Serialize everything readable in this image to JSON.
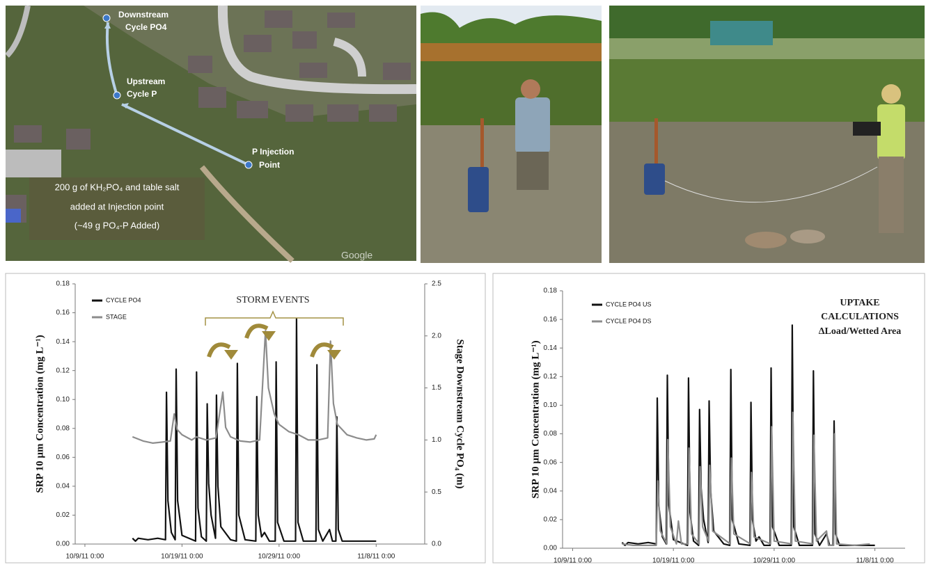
{
  "aerial_map": {
    "points": [
      [
        "Downstream",
        "Cycle PO4"
      ],
      [
        "Upstream",
        "Cycle P"
      ],
      [
        "P Injection",
        "Point"
      ]
    ],
    "note": [
      "200 g of KH₂PO₄ and table salt",
      "added at Injection point",
      "(~49 g PO₄-P Added)"
    ],
    "watermark": "Google"
  },
  "chart_data": [
    {
      "type": "line",
      "ylabel": "SRP 10 µm Concentration (mg L⁻¹)",
      "y2label": "Stage Downstream Cycle PO₄ (m)",
      "annotations": [
        "STORM EVENTS"
      ],
      "xlim": [
        40824,
        40860
      ],
      "xticks": [
        {
          "value": 40825,
          "label": "10/9/11 0:00"
        },
        {
          "value": 40835,
          "label": "10/19/11 0:00"
        },
        {
          "value": 40845,
          "label": "10/29/11 0:00"
        },
        {
          "value": 40855,
          "label": "11/8/11 0:00"
        }
      ],
      "ylim": [
        0,
        0.18
      ],
      "yticks": [
        {
          "value": 0,
          "label": "0.00"
        },
        {
          "value": 0.02,
          "label": "0.02"
        },
        {
          "value": 0.04,
          "label": "0.04"
        },
        {
          "value": 0.06,
          "label": "0.06"
        },
        {
          "value": 0.08,
          "label": "0.08"
        },
        {
          "value": 0.1,
          "label": "0.10"
        },
        {
          "value": 0.12,
          "label": "0.12"
        },
        {
          "value": 0.14,
          "label": "0.14"
        },
        {
          "value": 0.16,
          "label": "0.16"
        },
        {
          "value": 0.18,
          "label": "0.18"
        }
      ],
      "y2lim": [
        0,
        2.5
      ],
      "y2ticks": [
        {
          "value": 0,
          "label": "0.0"
        },
        0.5,
        {
          "value": 1,
          "label": "1.0"
        },
        1.5,
        {
          "value": 2,
          "label": "2.0"
        },
        2.5
      ],
      "series": [
        {
          "name": "CYCLE PO4",
          "color": "#111111",
          "x": [
            40829.9,
            40830.2,
            40830.5,
            40831.5,
            40832.5,
            40833.3,
            40833.4,
            40833.55,
            40833.9,
            40834.3,
            40834.4,
            40834.55,
            40835,
            40836.4,
            40836.5,
            40836.65,
            40837,
            40837.5,
            40837.6,
            40837.75,
            40838,
            40838.45,
            40838.55,
            40838.7,
            40839,
            40840,
            40840.6,
            40840.7,
            40840.85,
            40841.5,
            40842.6,
            40842.7,
            40842.85,
            40843.2,
            40843.5,
            40844,
            40844.6,
            40844.7,
            40844.85,
            40845.5,
            40846.7,
            40846.8,
            40846.95,
            40847.5,
            40848.8,
            40848.9,
            40849.05,
            40849.5,
            40850.2,
            40850.5,
            40850.85,
            40850.95,
            40851.1,
            40851.5,
            40853,
            40855
          ],
          "values": [
            0.004,
            0.002,
            0.004,
            0.003,
            0.004,
            0.003,
            0.105,
            0.03,
            0.008,
            0.003,
            0.121,
            0.03,
            0.006,
            0.002,
            0.119,
            0.025,
            0.005,
            0.002,
            0.097,
            0.042,
            0.02,
            0.004,
            0.103,
            0.04,
            0.012,
            0.003,
            0.002,
            0.125,
            0.02,
            0.003,
            0.002,
            0.102,
            0.02,
            0.005,
            0.008,
            0.002,
            0.002,
            0.126,
            0.015,
            0.002,
            0.002,
            0.156,
            0.015,
            0.002,
            0.002,
            0.124,
            0.01,
            0.002,
            0.01,
            0.002,
            0.002,
            0.088,
            0.01,
            0.002,
            0.002,
            0.002
          ]
        },
        {
          "name": "STAGE",
          "color": "#8c8c8c",
          "axis": "y2",
          "x": [
            40829.9,
            40831,
            40832,
            40833,
            40833.8,
            40834.2,
            40834.5,
            40835,
            40836,
            40836.5,
            40837.5,
            40838.5,
            40839.2,
            40839.5,
            40840,
            40841,
            40842,
            40843,
            40843.6,
            40843.9,
            40844.5,
            40845,
            40846,
            40847,
            40848,
            40849,
            40850,
            40850.3,
            40850.6,
            40851,
            40852,
            40853,
            40854,
            40854.8,
            40855
          ],
          "values": [
            1.03,
            0.99,
            0.97,
            0.98,
            0.99,
            1.25,
            1.1,
            1.05,
            1.0,
            1.03,
            1.0,
            1.02,
            1.46,
            1.12,
            1.03,
            0.99,
            0.98,
            1.0,
            2.05,
            1.5,
            1.25,
            1.15,
            1.08,
            1.05,
            1.0,
            1.0,
            1.02,
            1.95,
            1.35,
            1.15,
            1.05,
            1.02,
            1.0,
            1.01,
            1.05
          ]
        }
      ]
    },
    {
      "type": "line",
      "ylabel": "SRP 10 µm Concentration (mg L⁻¹)",
      "annotations": [
        "UPTAKE",
        "CALCULATIONS",
        "ΔLoad/Wetted Area"
      ],
      "xlim": [
        40824,
        40858
      ],
      "xticks": [
        {
          "value": 40825,
          "label": "10/9/11 0:00"
        },
        {
          "value": 40835,
          "label": "10/19/11 0:00"
        },
        {
          "value": 40845,
          "label": "10/29/11 0:00"
        },
        {
          "value": 40855,
          "label": "11/8/11 0:00"
        }
      ],
      "ylim": [
        0,
        0.18
      ],
      "yticks": [
        {
          "value": 0,
          "label": "0.00"
        },
        {
          "value": 0.02,
          "label": "0.02"
        },
        {
          "value": 0.04,
          "label": "0.04"
        },
        {
          "value": 0.06,
          "label": "0.06"
        },
        {
          "value": 0.08,
          "label": "0.08"
        },
        {
          "value": 0.1,
          "label": "0.10"
        },
        {
          "value": 0.12,
          "label": "0.12"
        },
        {
          "value": 0.14,
          "label": "0.14"
        },
        {
          "value": 0.16,
          "label": "0.16"
        },
        {
          "value": 0.18,
          "label": "0.18"
        }
      ],
      "series": [
        {
          "name": "CYCLE PO4 US",
          "color": "#111111",
          "x": [
            40829.9,
            40830.2,
            40830.5,
            40831.5,
            40832.5,
            40833.3,
            40833.4,
            40833.55,
            40833.9,
            40834.3,
            40834.4,
            40834.55,
            40835,
            40836.4,
            40836.5,
            40836.65,
            40837,
            40837.5,
            40837.6,
            40837.75,
            40838,
            40838.45,
            40838.55,
            40838.7,
            40839,
            40840,
            40840.6,
            40840.7,
            40840.85,
            40841.5,
            40842.6,
            40842.7,
            40842.85,
            40843.2,
            40843.5,
            40844,
            40844.6,
            40844.7,
            40844.85,
            40845.5,
            40846.7,
            40846.8,
            40846.95,
            40847.5,
            40848.8,
            40848.9,
            40849.05,
            40849.5,
            40850.2,
            40850.5,
            40850.85,
            40850.95,
            40851.1,
            40851.5,
            40853,
            40855
          ],
          "values": [
            0.004,
            0.002,
            0.004,
            0.003,
            0.004,
            0.003,
            0.105,
            0.03,
            0.008,
            0.003,
            0.121,
            0.03,
            0.006,
            0.002,
            0.119,
            0.025,
            0.005,
            0.002,
            0.097,
            0.042,
            0.02,
            0.004,
            0.103,
            0.04,
            0.012,
            0.003,
            0.002,
            0.125,
            0.02,
            0.003,
            0.002,
            0.102,
            0.02,
            0.005,
            0.008,
            0.002,
            0.002,
            0.126,
            0.015,
            0.002,
            0.002,
            0.156,
            0.015,
            0.002,
            0.002,
            0.124,
            0.01,
            0.002,
            0.01,
            0.002,
            0.002,
            0.089,
            0.01,
            0.002,
            0.002,
            0.002
          ]
        },
        {
          "name": "CYCLE PO4 DS",
          "color": "#8c8c8c",
          "x": [
            40829.9,
            40831,
            40833.3,
            40833.45,
            40833.7,
            40834.35,
            40834.45,
            40834.7,
            40835.3,
            40835.5,
            40835.8,
            40836.45,
            40836.55,
            40836.8,
            40837.55,
            40837.65,
            40837.9,
            40838.5,
            40838.6,
            40838.9,
            40840.65,
            40840.75,
            40841,
            40842.65,
            40842.75,
            40843,
            40844.65,
            40844.75,
            40845,
            40846.75,
            40846.85,
            40847.1,
            40848.85,
            40848.95,
            40849.2,
            40850.2,
            40850.4,
            40850.9,
            40851,
            40851.2,
            40853,
            40854.5
          ],
          "values": [
            0.003,
            0.002,
            0.002,
            0.047,
            0.012,
            0.003,
            0.076,
            0.015,
            0.003,
            0.019,
            0.003,
            0.003,
            0.07,
            0.01,
            0.003,
            0.057,
            0.015,
            0.005,
            0.058,
            0.012,
            0.003,
            0.063,
            0.01,
            0.003,
            0.053,
            0.008,
            0.003,
            0.085,
            0.005,
            0.003,
            0.095,
            0.005,
            0.003,
            0.079,
            0.005,
            0.012,
            0.002,
            0.002,
            0.08,
            0.003,
            0.002,
            0.003
          ]
        }
      ]
    }
  ]
}
